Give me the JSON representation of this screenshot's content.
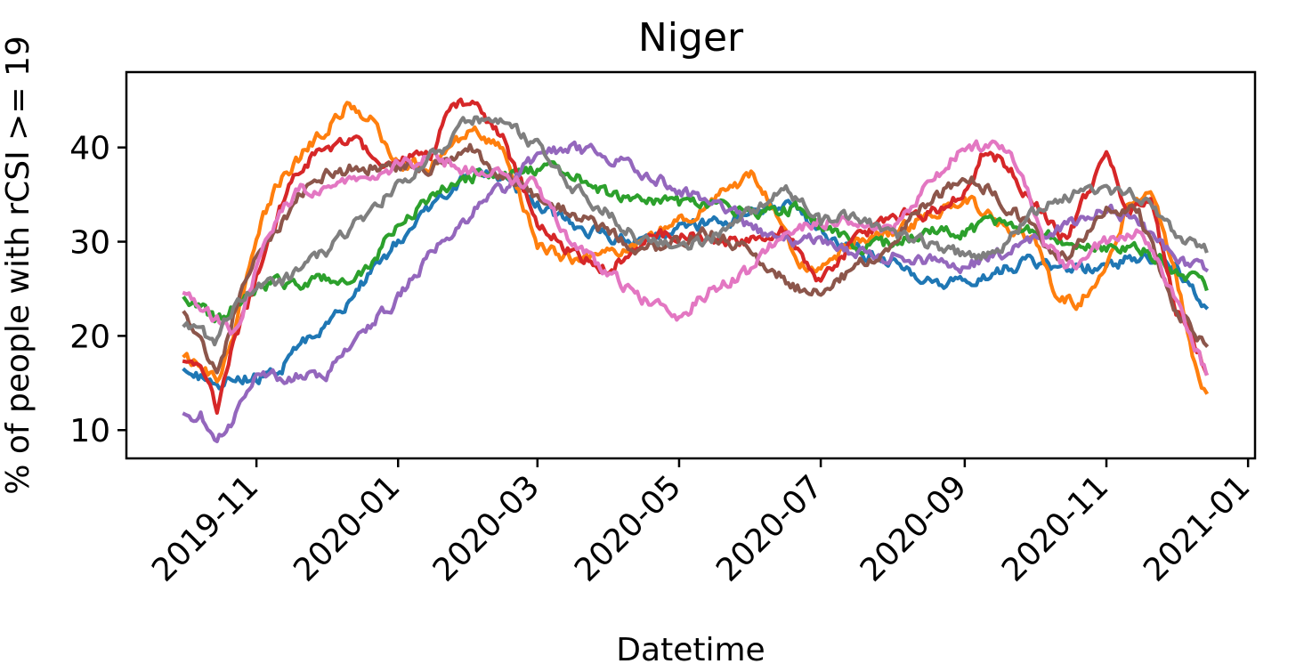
{
  "chart_data": {
    "type": "line",
    "title": "Niger",
    "xlabel": "Datetime",
    "ylabel": "% of people with rCSI >= 19",
    "x_start": "2019-10-01",
    "x_end": "2020-12-14",
    "xlim": [
      "2019-09-06",
      "2021-01-04"
    ],
    "ylim": [
      7,
      48
    ],
    "x_ticks": [
      "2019-11",
      "2020-01",
      "2020-03",
      "2020-05",
      "2020-07",
      "2020-09",
      "2020-11",
      "2021-01"
    ],
    "y_ticks": [
      10,
      20,
      30,
      40
    ],
    "grid": false,
    "legend": "none",
    "series": [
      {
        "color": "#1f77b4",
        "points": [
          [
            "2019-10-01",
            16.5
          ],
          [
            "2019-10-08",
            15.5
          ],
          [
            "2019-10-15",
            14.5
          ],
          [
            "2019-10-22",
            15.5
          ],
          [
            "2019-11-01",
            15.5
          ],
          [
            "2019-11-10",
            16
          ],
          [
            "2019-11-20",
            19
          ],
          [
            "2019-12-01",
            21
          ],
          [
            "2019-12-15",
            25
          ],
          [
            "2020-01-01",
            30
          ],
          [
            "2020-01-20",
            35
          ],
          [
            "2020-02-01",
            37.5
          ],
          [
            "2020-02-15",
            37
          ],
          [
            "2020-03-01",
            34
          ],
          [
            "2020-03-15",
            32
          ],
          [
            "2020-04-01",
            30.5
          ],
          [
            "2020-04-15",
            30
          ],
          [
            "2020-05-01",
            31.5
          ],
          [
            "2020-05-20",
            32
          ],
          [
            "2020-06-01",
            33.5
          ],
          [
            "2020-06-20",
            33.5
          ],
          [
            "2020-07-01",
            31
          ],
          [
            "2020-07-15",
            29
          ],
          [
            "2020-08-01",
            27.5
          ],
          [
            "2020-08-15",
            26
          ],
          [
            "2020-09-01",
            25.5
          ],
          [
            "2020-09-15",
            27
          ],
          [
            "2020-10-01",
            28
          ],
          [
            "2020-10-15",
            27
          ],
          [
            "2020-11-01",
            27.5
          ],
          [
            "2020-11-15",
            28.5
          ],
          [
            "2020-12-01",
            27.5
          ],
          [
            "2020-12-14",
            23
          ]
        ]
      },
      {
        "color": "#ff7f0e",
        "points": [
          [
            "2019-10-01",
            17.5
          ],
          [
            "2019-10-08",
            17
          ],
          [
            "2019-10-15",
            15
          ],
          [
            "2019-10-22",
            20
          ],
          [
            "2019-11-01",
            31
          ],
          [
            "2019-11-10",
            36
          ],
          [
            "2019-11-20",
            39
          ],
          [
            "2019-12-01",
            42
          ],
          [
            "2019-12-10",
            44.5
          ],
          [
            "2019-12-20",
            43
          ],
          [
            "2020-01-01",
            38
          ],
          [
            "2020-01-15",
            38
          ],
          [
            "2020-02-01",
            42
          ],
          [
            "2020-02-15",
            40
          ],
          [
            "2020-03-01",
            30
          ],
          [
            "2020-03-10",
            28.5
          ],
          [
            "2020-03-20",
            28
          ],
          [
            "2020-04-01",
            29
          ],
          [
            "2020-04-15",
            30
          ],
          [
            "2020-05-01",
            32
          ],
          [
            "2020-05-15",
            34.5
          ],
          [
            "2020-06-01",
            37
          ],
          [
            "2020-06-10",
            34
          ],
          [
            "2020-06-20",
            28
          ],
          [
            "2020-07-01",
            27
          ],
          [
            "2020-07-15",
            30
          ],
          [
            "2020-08-01",
            31
          ],
          [
            "2020-08-15",
            32.5
          ],
          [
            "2020-09-01",
            35
          ],
          [
            "2020-09-15",
            32
          ],
          [
            "2020-10-01",
            30
          ],
          [
            "2020-10-10",
            24.5
          ],
          [
            "2020-10-20",
            23.5
          ],
          [
            "2020-11-01",
            27
          ],
          [
            "2020-11-10",
            34
          ],
          [
            "2020-11-20",
            35
          ],
          [
            "2020-12-01",
            27
          ],
          [
            "2020-12-08",
            18
          ],
          [
            "2020-12-14",
            14
          ]
        ]
      },
      {
        "color": "#2ca02c",
        "points": [
          [
            "2019-10-01",
            23.5
          ],
          [
            "2019-10-08",
            23
          ],
          [
            "2019-10-15",
            21.5
          ],
          [
            "2019-10-22",
            23
          ],
          [
            "2019-11-01",
            25.5
          ],
          [
            "2019-11-15",
            25.5
          ],
          [
            "2019-12-01",
            26
          ],
          [
            "2019-12-10",
            26
          ],
          [
            "2019-12-20",
            27.5
          ],
          [
            "2020-01-01",
            32
          ],
          [
            "2020-01-20",
            35.5
          ],
          [
            "2020-02-01",
            37
          ],
          [
            "2020-02-20",
            37
          ],
          [
            "2020-03-05",
            38
          ],
          [
            "2020-03-15",
            37.5
          ],
          [
            "2020-04-01",
            35
          ],
          [
            "2020-04-15",
            34
          ],
          [
            "2020-05-01",
            34
          ],
          [
            "2020-05-20",
            34
          ],
          [
            "2020-06-01",
            33
          ],
          [
            "2020-06-20",
            33.5
          ],
          [
            "2020-07-01",
            31.5
          ],
          [
            "2020-07-20",
            29
          ],
          [
            "2020-08-01",
            30
          ],
          [
            "2020-08-15",
            31
          ],
          [
            "2020-09-01",
            31
          ],
          [
            "2020-09-15",
            32
          ],
          [
            "2020-10-01",
            31
          ],
          [
            "2020-10-15",
            30
          ],
          [
            "2020-11-01",
            29
          ],
          [
            "2020-11-15",
            29.5
          ],
          [
            "2020-12-01",
            27
          ],
          [
            "2020-12-14",
            25
          ]
        ]
      },
      {
        "color": "#d62728",
        "points": [
          [
            "2019-10-01",
            17.5
          ],
          [
            "2019-10-08",
            17.5
          ],
          [
            "2019-10-15",
            12.5
          ],
          [
            "2019-10-22",
            19
          ],
          [
            "2019-11-01",
            26
          ],
          [
            "2019-11-10",
            33
          ],
          [
            "2019-11-20",
            38
          ],
          [
            "2019-12-01",
            40
          ],
          [
            "2019-12-15",
            41
          ],
          [
            "2019-12-25",
            37
          ],
          [
            "2020-01-05",
            39
          ],
          [
            "2020-01-15",
            39
          ],
          [
            "2020-01-25",
            45
          ],
          [
            "2020-02-05",
            44
          ],
          [
            "2020-02-15",
            41
          ],
          [
            "2020-03-01",
            32
          ],
          [
            "2020-03-15",
            29
          ],
          [
            "2020-04-01",
            27
          ],
          [
            "2020-04-15",
            30
          ],
          [
            "2020-05-01",
            31
          ],
          [
            "2020-05-15",
            30
          ],
          [
            "2020-06-01",
            30
          ],
          [
            "2020-06-15",
            31
          ],
          [
            "2020-07-01",
            25.5
          ],
          [
            "2020-07-15",
            30
          ],
          [
            "2020-08-01",
            33
          ],
          [
            "2020-08-15",
            33
          ],
          [
            "2020-09-01",
            35
          ],
          [
            "2020-09-10",
            40
          ],
          [
            "2020-09-20",
            38
          ],
          [
            "2020-10-01",
            34
          ],
          [
            "2020-10-15",
            30
          ],
          [
            "2020-11-01",
            40
          ],
          [
            "2020-11-10",
            33
          ],
          [
            "2020-11-20",
            34
          ],
          [
            "2020-12-01",
            23
          ],
          [
            "2020-12-08",
            20
          ],
          [
            "2020-12-14",
            16
          ]
        ]
      },
      {
        "color": "#9467bd",
        "points": [
          [
            "2019-10-01",
            11.5
          ],
          [
            "2019-10-08",
            11.5
          ],
          [
            "2019-10-15",
            9
          ],
          [
            "2019-10-22",
            11
          ],
          [
            "2019-11-01",
            16
          ],
          [
            "2019-11-15",
            15.5
          ],
          [
            "2019-12-01",
            16
          ],
          [
            "2019-12-15",
            20
          ],
          [
            "2020-01-01",
            24
          ],
          [
            "2020-01-15",
            28.5
          ],
          [
            "2020-02-01",
            33
          ],
          [
            "2020-02-15",
            35.5
          ],
          [
            "2020-03-01",
            39
          ],
          [
            "2020-03-15",
            40
          ],
          [
            "2020-04-01",
            39
          ],
          [
            "2020-04-15",
            37.5
          ],
          [
            "2020-05-01",
            35.5
          ],
          [
            "2020-05-20",
            34
          ],
          [
            "2020-06-01",
            31.5
          ],
          [
            "2020-06-15",
            30
          ],
          [
            "2020-07-01",
            30
          ],
          [
            "2020-07-15",
            29
          ],
          [
            "2020-08-01",
            28.5
          ],
          [
            "2020-08-15",
            28
          ],
          [
            "2020-09-01",
            27.5
          ],
          [
            "2020-09-15",
            28.5
          ],
          [
            "2020-10-01",
            30
          ],
          [
            "2020-10-15",
            31.5
          ],
          [
            "2020-11-01",
            33.5
          ],
          [
            "2020-11-15",
            32
          ],
          [
            "2020-12-01",
            28
          ],
          [
            "2020-12-14",
            27
          ]
        ]
      },
      {
        "color": "#8c564b",
        "points": [
          [
            "2019-10-01",
            22
          ],
          [
            "2019-10-08",
            20
          ],
          [
            "2019-10-15",
            16
          ],
          [
            "2019-10-22",
            22
          ],
          [
            "2019-11-01",
            29
          ],
          [
            "2019-11-10",
            31
          ],
          [
            "2019-11-20",
            35
          ],
          [
            "2019-12-01",
            37
          ],
          [
            "2019-12-15",
            38
          ],
          [
            "2020-01-01",
            38
          ],
          [
            "2020-01-15",
            38
          ],
          [
            "2020-02-01",
            40
          ],
          [
            "2020-02-15",
            37
          ],
          [
            "2020-03-01",
            35
          ],
          [
            "2020-03-15",
            33
          ],
          [
            "2020-04-01",
            31
          ],
          [
            "2020-04-15",
            29
          ],
          [
            "2020-05-01",
            30
          ],
          [
            "2020-05-15",
            31
          ],
          [
            "2020-06-01",
            29
          ],
          [
            "2020-06-10",
            27
          ],
          [
            "2020-06-20",
            25
          ],
          [
            "2020-07-01",
            25
          ],
          [
            "2020-07-15",
            27
          ],
          [
            "2020-08-01",
            30
          ],
          [
            "2020-08-15",
            34
          ],
          [
            "2020-09-01",
            37
          ],
          [
            "2020-09-15",
            35
          ],
          [
            "2020-10-01",
            31
          ],
          [
            "2020-10-15",
            28
          ],
          [
            "2020-11-01",
            34
          ],
          [
            "2020-11-15",
            33
          ],
          [
            "2020-12-01",
            23
          ],
          [
            "2020-12-14",
            19
          ]
        ]
      },
      {
        "color": "#e377c2",
        "points": [
          [
            "2019-10-01",
            25
          ],
          [
            "2019-10-08",
            23
          ],
          [
            "2019-10-15",
            22
          ],
          [
            "2019-10-22",
            20
          ],
          [
            "2019-11-01",
            27
          ],
          [
            "2019-11-10",
            33
          ],
          [
            "2019-11-20",
            35.5
          ],
          [
            "2019-12-01",
            36
          ],
          [
            "2019-12-15",
            36
          ],
          [
            "2020-01-01",
            38
          ],
          [
            "2020-01-15",
            39
          ],
          [
            "2020-02-01",
            37.5
          ],
          [
            "2020-02-15",
            37
          ],
          [
            "2020-03-01",
            36
          ],
          [
            "2020-03-15",
            30
          ],
          [
            "2020-04-01",
            26.5
          ],
          [
            "2020-04-15",
            24
          ],
          [
            "2020-05-01",
            22
          ],
          [
            "2020-05-15",
            25
          ],
          [
            "2020-06-01",
            27
          ],
          [
            "2020-06-15",
            31
          ],
          [
            "2020-07-01",
            32
          ],
          [
            "2020-07-15",
            32
          ],
          [
            "2020-08-01",
            31
          ],
          [
            "2020-08-15",
            36
          ],
          [
            "2020-09-01",
            40
          ],
          [
            "2020-09-15",
            40
          ],
          [
            "2020-09-25",
            38
          ],
          [
            "2020-10-05",
            30
          ],
          [
            "2020-10-15",
            27
          ],
          [
            "2020-11-01",
            30
          ],
          [
            "2020-11-15",
            31
          ],
          [
            "2020-12-01",
            24
          ],
          [
            "2020-12-14",
            16
          ]
        ]
      },
      {
        "color": "#7f7f7f",
        "points": [
          [
            "2019-10-01",
            21
          ],
          [
            "2019-10-08",
            20
          ],
          [
            "2019-10-15",
            19.5
          ],
          [
            "2019-10-22",
            23
          ],
          [
            "2019-11-01",
            25
          ],
          [
            "2019-11-15",
            26
          ],
          [
            "2019-12-01",
            29
          ],
          [
            "2019-12-15",
            32
          ],
          [
            "2020-01-01",
            36
          ],
          [
            "2020-01-20",
            40
          ],
          [
            "2020-02-01",
            43
          ],
          [
            "2020-02-15",
            43
          ],
          [
            "2020-03-01",
            40
          ],
          [
            "2020-03-15",
            36
          ],
          [
            "2020-04-01",
            33
          ],
          [
            "2020-04-15",
            30
          ],
          [
            "2020-05-01",
            29.5
          ],
          [
            "2020-05-15",
            30.5
          ],
          [
            "2020-06-01",
            33
          ],
          [
            "2020-06-15",
            36
          ],
          [
            "2020-07-01",
            32
          ],
          [
            "2020-07-15",
            33
          ],
          [
            "2020-08-01",
            31
          ],
          [
            "2020-08-15",
            30
          ],
          [
            "2020-09-01",
            28.5
          ],
          [
            "2020-09-15",
            29
          ],
          [
            "2020-10-01",
            33
          ],
          [
            "2020-10-15",
            35
          ],
          [
            "2020-11-01",
            35
          ],
          [
            "2020-11-15",
            35
          ],
          [
            "2020-12-01",
            31
          ],
          [
            "2020-12-14",
            29
          ]
        ]
      }
    ]
  }
}
